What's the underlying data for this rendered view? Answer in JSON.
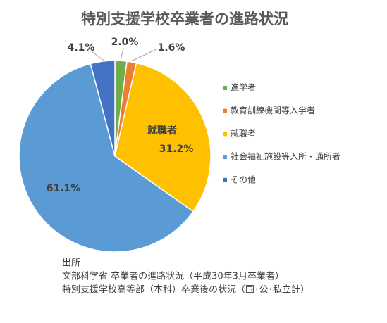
{
  "chart_data": {
    "type": "pie",
    "title": "特別支援学校卒業者の進路状況",
    "categories": [
      "進学者",
      "教育訓練機関等入学者",
      "就職者",
      "社会福祉施設等入所・通所者",
      "その他"
    ],
    "values": [
      2.0,
      1.6,
      31.2,
      61.1,
      4.1
    ],
    "value_labels": [
      "2.0%",
      "1.6%",
      "31.2%",
      "61.1%",
      "4.1%"
    ],
    "colors": [
      "#70ad47",
      "#ed7d31",
      "#ffc000",
      "#5b9bd5",
      "#4472c4"
    ],
    "source": [
      "出所",
      "文部科学省 卒業者の進路状況（平成30年3月卒業者）",
      "特別支援学校高等部（本科）卒業後の状況（国･公･私立計）"
    ]
  }
}
